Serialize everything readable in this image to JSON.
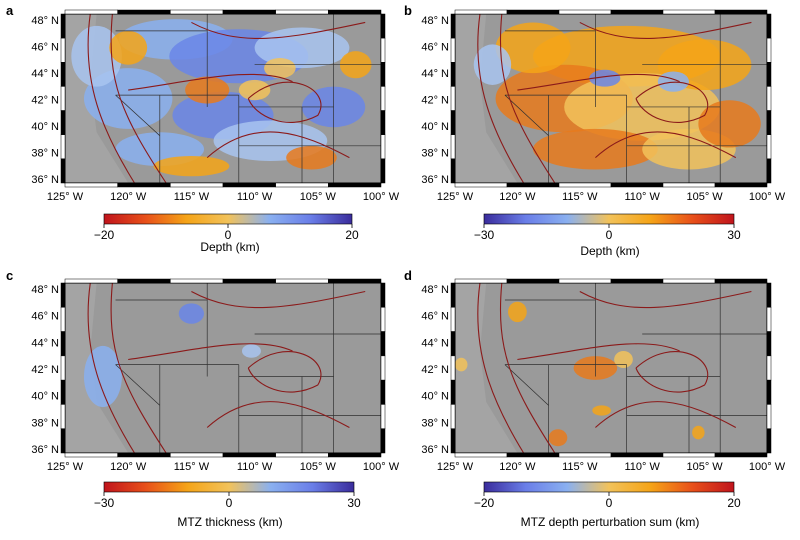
{
  "panels": [
    {
      "letter": "a",
      "cb_min": "−20",
      "cb_mid": "0",
      "cb_max": "20",
      "cb_label": "Depth (km)",
      "cb_colors": [
        "#c0141c",
        "#e8501a",
        "#f5a418",
        "#f2c25a",
        "#8ab0f0",
        "#6a7ee8",
        "#3a2c9c"
      ]
    },
    {
      "letter": "b",
      "cb_min": "−30",
      "cb_mid": "0",
      "cb_max": "30",
      "cb_label": "Depth (km)",
      "cb_colors": [
        "#3a2c9c",
        "#6a7ee8",
        "#8ab0f0",
        "#f2c25a",
        "#f5a418",
        "#e8501a",
        "#c0141c"
      ]
    },
    {
      "letter": "c",
      "cb_min": "−30",
      "cb_mid": "0",
      "cb_max": "30",
      "cb_label": "MTZ thickness (km)",
      "cb_colors": [
        "#c0141c",
        "#e8501a",
        "#f5a418",
        "#f2c25a",
        "#8ab0f0",
        "#6a7ee8",
        "#3a2c9c"
      ]
    },
    {
      "letter": "d",
      "cb_min": "−20",
      "cb_mid": "0",
      "cb_max": "20",
      "cb_label": "MTZ depth perturbation sum (km)",
      "cb_colors": [
        "#3a2c9c",
        "#6a7ee8",
        "#8ab0f0",
        "#f2c25a",
        "#f5a418",
        "#e8501a",
        "#c0141c"
      ]
    }
  ],
  "lat_labels": [
    "48° N",
    "46° N",
    "44° N",
    "42° N",
    "40° N",
    "38° N",
    "36° N"
  ],
  "lon_labels": [
    "125° W",
    "120° W",
    "115° W",
    "110° W",
    "105° W",
    "100° W"
  ],
  "colors": {
    "background_gray": "#9a9a9a",
    "boundary": "#8b1a1a",
    "state_line": "#303030"
  }
}
